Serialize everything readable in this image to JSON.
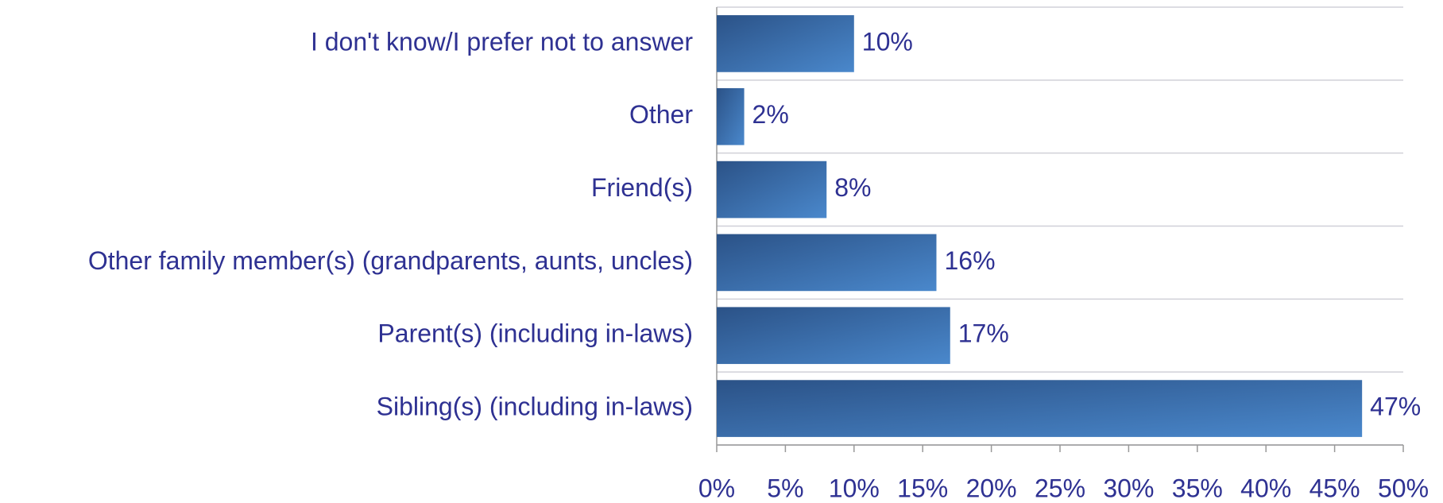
{
  "chart_data": {
    "type": "bar",
    "orientation": "horizontal",
    "categories": [
      "I don't know/I prefer not to answer",
      "Other",
      "Friend(s)",
      "Other family member(s) (grandparents, aunts, uncles)",
      "Parent(s) (including in-laws)",
      "Sibling(s) (including in-laws)"
    ],
    "values": [
      10,
      2,
      8,
      16,
      17,
      47
    ],
    "value_labels": [
      "10%",
      "2%",
      "8%",
      "16%",
      "17%",
      "47%"
    ],
    "color": "#3f78b8",
    "xlim": [
      0,
      50
    ],
    "xticks": [
      {
        "value": 0,
        "label": "0%"
      },
      {
        "value": 5,
        "label": "5%"
      },
      {
        "value": 10,
        "label": "10%"
      },
      {
        "value": 15,
        "label": "15%"
      },
      {
        "value": 20,
        "label": "20%"
      },
      {
        "value": 25,
        "label": "25%"
      },
      {
        "value": 30,
        "label": "30%"
      },
      {
        "value": 35,
        "label": "35%"
      },
      {
        "value": 40,
        "label": "40%"
      },
      {
        "value": 45,
        "label": "45%"
      },
      {
        "value": 50,
        "label": "50%"
      }
    ],
    "grid": true
  }
}
